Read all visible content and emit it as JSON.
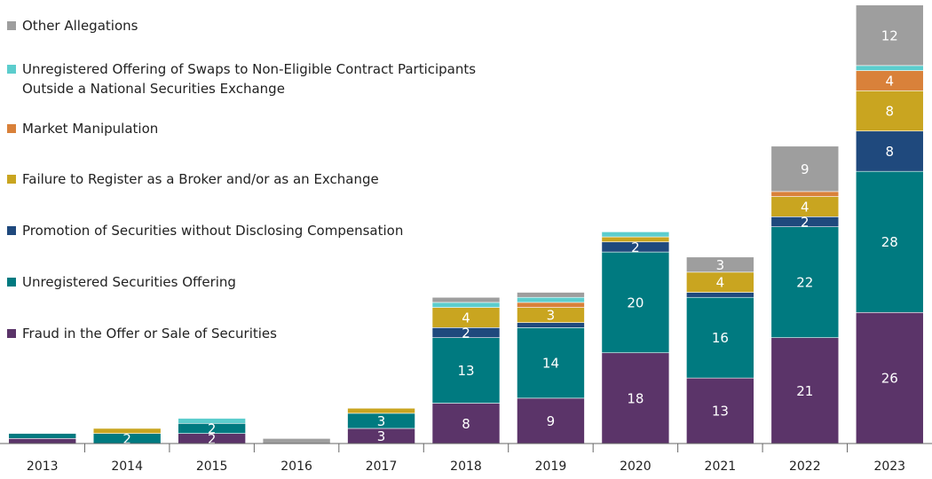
{
  "chart_data": {
    "type": "stacked_bar",
    "categories": [
      "2013",
      "2014",
      "2015",
      "2016",
      "2017",
      "2018",
      "2019",
      "2020",
      "2021",
      "2022",
      "2023"
    ],
    "series": [
      {
        "name": "Fraud in the Offer or Sale of Securities",
        "color": "#5b3469",
        "values": [
          1,
          0,
          2,
          0,
          3,
          8,
          9,
          18,
          13,
          21,
          26
        ]
      },
      {
        "name": "Unregistered Securities Offering",
        "color": "#007a80",
        "values": [
          1,
          2,
          2,
          0,
          3,
          13,
          14,
          20,
          16,
          22,
          28
        ]
      },
      {
        "name": "Promotion of Securities without Disclosing Compensation",
        "color": "#1f497d",
        "values": [
          0,
          0,
          0,
          0,
          0,
          2,
          1,
          2,
          1,
          2,
          8
        ]
      },
      {
        "name": "Failure to Register as a Broker and/or as an Exchange",
        "color": "#c9a520",
        "values": [
          0,
          1,
          0,
          0,
          1,
          4,
          3,
          1,
          4,
          4,
          8
        ]
      },
      {
        "name": "Market Manipulation",
        "color": "#d9813a",
        "values": [
          0,
          0,
          0,
          0,
          0,
          0,
          1,
          0,
          0,
          1,
          4
        ]
      },
      {
        "name": "Unregistered Offering of Swaps to Non-Eligible Contract Participants Outside a National Securities Exchange",
        "color": "#5ccdcd",
        "values": [
          0,
          0,
          1,
          0,
          0,
          1,
          1,
          1,
          0,
          0,
          1
        ]
      },
      {
        "name": "Other Allegations",
        "color": "#9e9e9e",
        "values": [
          0,
          0,
          0,
          1,
          0,
          1,
          1,
          0,
          3,
          9,
          12
        ]
      }
    ],
    "ylim": [
      0,
      88
    ]
  }
}
